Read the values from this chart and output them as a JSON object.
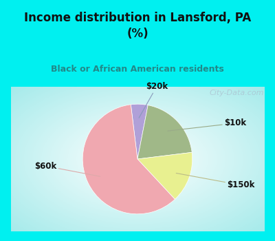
{
  "title": "Income distribution in Lansford, PA\n(%)",
  "subtitle": "Black or African American residents",
  "slices": [
    {
      "label": "$20k",
      "value": 5,
      "color": "#b0a0d8"
    },
    {
      "label": "$10k",
      "value": 20,
      "color": "#a0b888"
    },
    {
      "label": "$150k",
      "value": 15,
      "color": "#e8f090"
    },
    {
      "label": "$60k",
      "value": 60,
      "color": "#f0a8b0"
    }
  ],
  "bg_color": "#00f0f0",
  "title_color": "#111111",
  "subtitle_color": "#228888",
  "label_color": "#111111",
  "watermark": "City-Data.com",
  "start_angle": 97
}
